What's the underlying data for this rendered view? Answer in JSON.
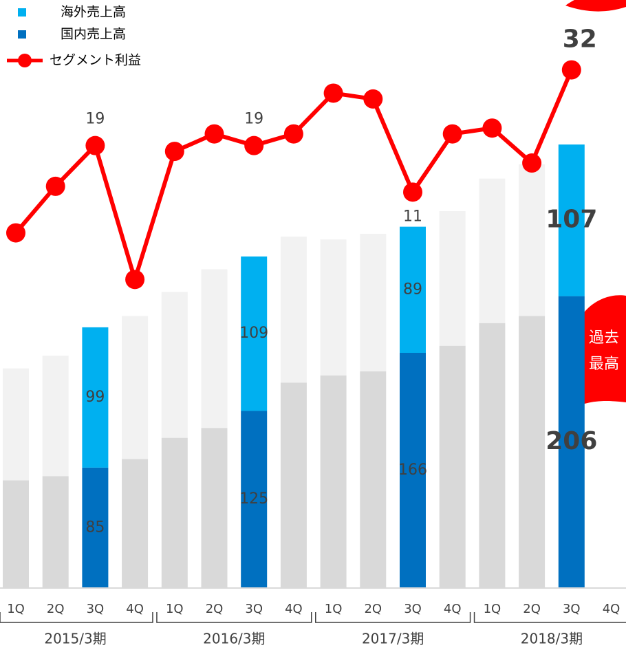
{
  "chart_data": {
    "type": "stacked-bar-line",
    "categories": [
      "1Q",
      "2Q",
      "3Q",
      "4Q",
      "1Q",
      "2Q",
      "3Q",
      "4Q",
      "1Q",
      "2Q",
      "3Q",
      "4Q",
      "1Q",
      "2Q",
      "3Q",
      "4Q"
    ],
    "x_groups": [
      "2015/3期",
      "2016/3期",
      "2017/3期",
      "2018/3期"
    ],
    "highlight": [
      2,
      6,
      10,
      14
    ],
    "series": [
      {
        "name": "国内売上高",
        "color": "#0070c0",
        "muted_color": "#d9d9d9",
        "values": [
          76,
          79,
          85,
          91,
          106,
          113,
          125,
          145,
          150,
          153,
          166,
          171,
          187,
          192,
          206,
          null
        ],
        "value_labels": [
          null,
          null,
          "85",
          null,
          null,
          null,
          "125",
          null,
          null,
          null,
          "166",
          null,
          null,
          null,
          "206",
          null
        ]
      },
      {
        "name": "海外売上高",
        "color": "#00b0f0",
        "muted_color": "#f2f2f2",
        "values": [
          79,
          85,
          99,
          101,
          103,
          112,
          109,
          103,
          96,
          97,
          89,
          95,
          102,
          107,
          107,
          null
        ],
        "value_labels": [
          null,
          null,
          "99",
          null,
          null,
          null,
          "109",
          null,
          null,
          null,
          "89",
          null,
          null,
          null,
          "107",
          null
        ]
      },
      {
        "name": "セグメント利益",
        "color": "#ff0000",
        "type": "line",
        "axis": "y2",
        "values": [
          4,
          12,
          19,
          -4,
          18,
          21,
          19,
          21,
          28,
          27,
          11,
          21,
          22,
          16,
          32,
          null
        ],
        "value_labels": [
          null,
          null,
          "19",
          null,
          null,
          null,
          "19",
          null,
          null,
          null,
          "11",
          null,
          null,
          null,
          "32",
          null
        ]
      }
    ],
    "ylim": [
      0,
      415
    ],
    "y2lim": [
      -57,
      44
    ],
    "legend": "top-left",
    "annotation": [
      "過去",
      "最高"
    ]
  }
}
